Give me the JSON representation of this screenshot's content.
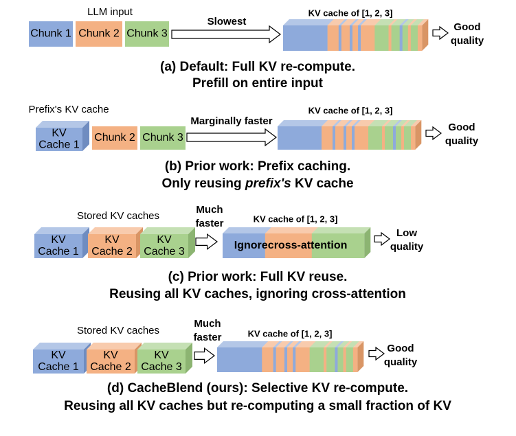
{
  "panels": [
    {
      "input_label": "LLM input",
      "blocks": [
        [
          "Chunk 1"
        ],
        [
          "Chunk 2"
        ],
        [
          "Chunk 3"
        ]
      ],
      "arrow_label": [
        "Slowest"
      ],
      "cache_label": "KV cache of [1, 2, 3]",
      "result": [
        "Good",
        "quality"
      ],
      "caption": [
        [
          "(a) Default: Full KV re-compute."
        ],
        [
          "Prefill on entire input"
        ]
      ]
    },
    {
      "input_label": "Prefix's KV cache",
      "blocks": [
        [
          "KV",
          "Cache 1"
        ],
        [
          "Chunk 2"
        ],
        [
          "Chunk 3"
        ]
      ],
      "arrow_label": [
        "Marginally faster"
      ],
      "cache_label": "KV cache of [1, 2, 3]",
      "result": [
        "Good",
        "quality"
      ],
      "caption": [
        [
          "(b) Prior work: Prefix caching."
        ],
        [
          "Only reusing ",
          "prefix's",
          " KV cache"
        ]
      ]
    },
    {
      "input_label": "Stored KV caches",
      "blocks": [
        [
          "KV",
          "Cache 1"
        ],
        [
          "KV",
          "Cache 2"
        ],
        [
          "KV",
          "Cache 3"
        ]
      ],
      "arrow_label": [
        "Much",
        "faster"
      ],
      "cache_label": "KV cache of [1, 2, 3]",
      "cache_text": [
        "Ignore",
        "cross-attention"
      ],
      "result": [
        "Low",
        "quality"
      ],
      "caption": [
        [
          "(c) Prior work: Full KV reuse."
        ],
        [
          "Reusing all KV caches, ignoring cross-attention"
        ]
      ]
    },
    {
      "input_label": "Stored KV caches",
      "blocks": [
        [
          "KV",
          "Cache 1"
        ],
        [
          "KV",
          "Cache 2"
        ],
        [
          "KV",
          "Cache 3"
        ]
      ],
      "arrow_label": [
        "Much",
        "faster"
      ],
      "cache_label": "KV cache of [1, 2, 3]",
      "result": [
        "Good",
        "quality"
      ],
      "caption": [
        [
          "(d) CacheBlend (ours): Selective KV re-compute."
        ],
        [
          "Reusing all KV caches but re-computing a small fraction of KV"
        ]
      ]
    }
  ]
}
